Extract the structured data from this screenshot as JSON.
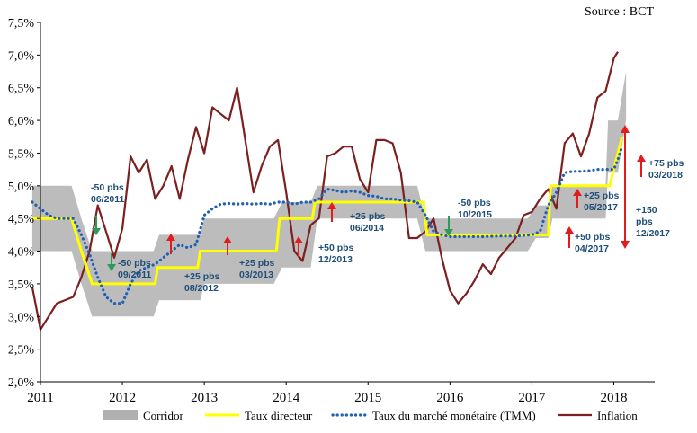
{
  "source": "Source : BCT",
  "chart_data": {
    "type": "line",
    "title": "",
    "xlabel": "",
    "ylabel": "",
    "ylim": [
      2.0,
      7.5
    ],
    "xlim": [
      2011.0,
      2018.5
    ],
    "y_ticks": [
      "2,0%",
      "2,5%",
      "3,0%",
      "3,5%",
      "4,0%",
      "4,5%",
      "5,0%",
      "5,5%",
      "6,0%",
      "6,5%",
      "7,0%",
      "7,5%"
    ],
    "y_tick_values": [
      2.0,
      2.5,
      3.0,
      3.5,
      4.0,
      4.5,
      5.0,
      5.5,
      6.0,
      6.5,
      7.0,
      7.5
    ],
    "x_ticks": [
      "2011",
      "2012",
      "2013",
      "2014",
      "2015",
      "2016",
      "2017",
      "2018"
    ],
    "x_tick_values": [
      2011,
      2012,
      2013,
      2014,
      2015,
      2016,
      2017,
      2018
    ],
    "legend_placement": "bottom",
    "grid": false,
    "series": [
      {
        "name": "Corridor",
        "kind": "band",
        "color": "#b0b0b0",
        "x": [
          2010.9,
          2011.38,
          2011.5,
          2011.63,
          2011.72,
          2012.38,
          2012.45,
          2012.95,
          2013.0,
          2013.85,
          2013.95,
          2014.3,
          2014.38,
          2015.6,
          2015.7,
          2016.95,
          2017.05,
          2017.2,
          2017.25,
          2017.7,
          2017.9,
          2017.93,
          2018.05,
          2018.15
        ],
        "low": [
          4.0,
          4.0,
          3.5,
          3.0,
          3.0,
          3.0,
          3.25,
          3.25,
          3.5,
          3.5,
          3.75,
          3.75,
          4.5,
          4.5,
          4.0,
          4.0,
          4.2,
          4.2,
          4.5,
          4.5,
          4.5,
          5.2,
          5.2,
          6.0
        ],
        "high": [
          5.0,
          5.0,
          4.5,
          4.0,
          4.0,
          4.0,
          4.25,
          4.25,
          4.5,
          4.5,
          4.75,
          4.75,
          5.0,
          5.0,
          4.5,
          4.5,
          4.7,
          4.7,
          5.0,
          5.0,
          5.0,
          6.0,
          6.0,
          6.75
        ]
      },
      {
        "name": "Taux directeur",
        "kind": "step",
        "color": "#ffff00",
        "x": [
          2010.9,
          2011.38,
          2011.5,
          2011.63,
          2012.4,
          2012.43,
          2012.92,
          2012.95,
          2013.88,
          2013.92,
          2014.32,
          2014.35,
          2015.68,
          2015.72,
          2017.2,
          2017.23,
          2017.95,
          2018.1
        ],
        "values": [
          4.5,
          4.5,
          4.0,
          3.5,
          3.5,
          3.75,
          3.75,
          4.0,
          4.0,
          4.5,
          4.5,
          4.75,
          4.75,
          4.25,
          4.25,
          5.0,
          5.0,
          5.75
        ]
      },
      {
        "name": "Taux du marché monétaire (TMM)",
        "kind": "dotted",
        "color": "#1f5fb4",
        "x": [
          2010.9,
          2011.0,
          2011.1,
          2011.2,
          2011.3,
          2011.4,
          2011.5,
          2011.6,
          2011.7,
          2011.8,
          2011.9,
          2012.0,
          2012.1,
          2012.2,
          2012.3,
          2012.4,
          2012.5,
          2012.6,
          2012.7,
          2012.8,
          2012.9,
          2013.0,
          2013.1,
          2013.2,
          2013.3,
          2013.4,
          2013.5,
          2013.6,
          2013.7,
          2013.8,
          2013.9,
          2014.0,
          2014.1,
          2014.2,
          2014.3,
          2014.4,
          2014.5,
          2014.6,
          2014.7,
          2014.8,
          2014.9,
          2015.0,
          2015.1,
          2015.2,
          2015.3,
          2015.4,
          2015.5,
          2015.6,
          2015.7,
          2015.8,
          2015.9,
          2016.0,
          2016.2,
          2016.4,
          2016.6,
          2016.8,
          2017.0,
          2017.1,
          2017.2,
          2017.3,
          2017.4,
          2017.5,
          2017.6,
          2017.7,
          2017.8,
          2017.9,
          2018.0,
          2018.05,
          2018.1
        ],
        "values": [
          4.75,
          4.65,
          4.55,
          4.5,
          4.5,
          4.5,
          4.25,
          3.95,
          3.6,
          3.3,
          3.2,
          3.2,
          3.5,
          3.7,
          3.75,
          3.8,
          3.9,
          4.0,
          4.1,
          4.05,
          4.1,
          4.55,
          4.65,
          4.72,
          4.73,
          4.72,
          4.73,
          4.72,
          4.73,
          4.72,
          4.75,
          4.75,
          4.72,
          4.75,
          4.75,
          4.8,
          4.95,
          4.93,
          4.9,
          4.92,
          4.9,
          4.85,
          4.84,
          4.8,
          4.8,
          4.78,
          4.77,
          4.75,
          4.55,
          4.3,
          4.25,
          4.22,
          4.22,
          4.22,
          4.23,
          4.23,
          4.25,
          4.3,
          4.7,
          4.9,
          5.2,
          5.22,
          5.22,
          5.23,
          5.25,
          5.25,
          5.25,
          5.4,
          5.6
        ]
      },
      {
        "name": "Inflation",
        "kind": "line",
        "color": "#7b1f1f",
        "x": [
          2010.9,
          2011.0,
          2011.1,
          2011.2,
          2011.3,
          2011.4,
          2011.5,
          2011.6,
          2011.7,
          2011.8,
          2011.9,
          2012.0,
          2012.1,
          2012.2,
          2012.3,
          2012.4,
          2012.5,
          2012.6,
          2012.7,
          2012.8,
          2012.9,
          2013.0,
          2013.1,
          2013.2,
          2013.3,
          2013.4,
          2013.5,
          2013.6,
          2013.7,
          2013.8,
          2013.9,
          2014.0,
          2014.1,
          2014.2,
          2014.3,
          2014.4,
          2014.5,
          2014.6,
          2014.7,
          2014.8,
          2014.9,
          2015.0,
          2015.1,
          2015.2,
          2015.3,
          2015.4,
          2015.5,
          2015.6,
          2015.7,
          2015.8,
          2015.9,
          2016.0,
          2016.1,
          2016.2,
          2016.3,
          2016.4,
          2016.5,
          2016.6,
          2016.7,
          2016.8,
          2016.9,
          2017.0,
          2017.1,
          2017.2,
          2017.3,
          2017.4,
          2017.5,
          2017.6,
          2017.7,
          2017.8,
          2017.9,
          2018.0,
          2018.05
        ],
        "values": [
          3.45,
          2.8,
          3.0,
          3.2,
          3.25,
          3.3,
          3.6,
          4.0,
          4.7,
          4.3,
          3.9,
          4.35,
          5.45,
          5.2,
          5.4,
          4.8,
          5.0,
          5.3,
          4.8,
          5.4,
          5.9,
          5.5,
          6.2,
          6.1,
          6.0,
          6.5,
          5.7,
          4.9,
          5.3,
          5.6,
          5.7,
          4.9,
          4.0,
          3.85,
          4.4,
          4.5,
          5.45,
          5.5,
          5.6,
          5.6,
          5.1,
          4.9,
          5.7,
          5.7,
          5.65,
          5.2,
          4.2,
          4.2,
          4.3,
          4.5,
          3.9,
          3.4,
          3.2,
          3.35,
          3.55,
          3.8,
          3.65,
          3.9,
          4.05,
          4.2,
          4.55,
          4.6,
          4.8,
          4.95,
          4.65,
          5.65,
          5.8,
          5.45,
          5.8,
          6.35,
          6.45,
          6.95,
          7.05
        ]
      }
    ],
    "annotations": [
      {
        "lines": [
          "-50 pbs",
          "06/2011"
        ],
        "arrow": "down",
        "color": "#2e9a5a"
      },
      {
        "lines": [
          "-50 pbs",
          "09/2011"
        ],
        "arrow": "down",
        "color": "#2e9a5a"
      },
      {
        "lines": [
          "+25 pbs",
          "08/2012"
        ],
        "arrow": "up",
        "color": "#e31b1b"
      },
      {
        "lines": [
          "+25 pbs",
          "03/2013"
        ],
        "arrow": "up",
        "color": "#e31b1b"
      },
      {
        "lines": [
          "+50 pbs",
          "12/2013"
        ],
        "arrow": "up",
        "color": "#e31b1b"
      },
      {
        "lines": [
          "+25 pbs",
          "06/2014"
        ],
        "arrow": "up",
        "color": "#e31b1b"
      },
      {
        "lines": [
          "-50 pbs",
          "10/2015"
        ],
        "arrow": "down",
        "color": "#2e9a5a"
      },
      {
        "lines": [
          "+50 pbs",
          "04/2017"
        ],
        "arrow": "up",
        "color": "#e31b1b"
      },
      {
        "lines": [
          "+25 pbs",
          "05/2017"
        ],
        "arrow": "up",
        "color": "#e31b1b"
      },
      {
        "lines": [
          "+150",
          "pbs",
          "12/2017"
        ],
        "arrow": "both",
        "color": "#e31b1b"
      },
      {
        "lines": [
          "+75 pbs",
          "03/2018"
        ],
        "arrow": "up",
        "color": "#e31b1b"
      }
    ]
  }
}
